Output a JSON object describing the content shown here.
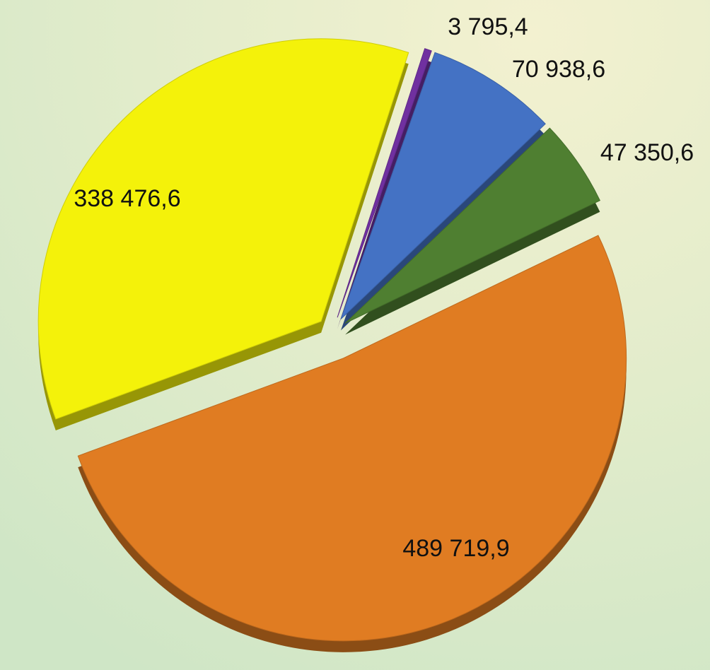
{
  "chart_data": {
    "type": "pie",
    "values": [
      3795.4,
      70938.6,
      47350.6,
      489719.9,
      338476.6
    ],
    "value_labels": [
      "3 795,4",
      "70 938,6",
      "47 350,6",
      "489 719,9",
      "338 476,6"
    ],
    "colors": [
      "#7030a0",
      "#4472c4",
      "#4f7f31",
      "#e07c22",
      "#f4f20a"
    ]
  }
}
